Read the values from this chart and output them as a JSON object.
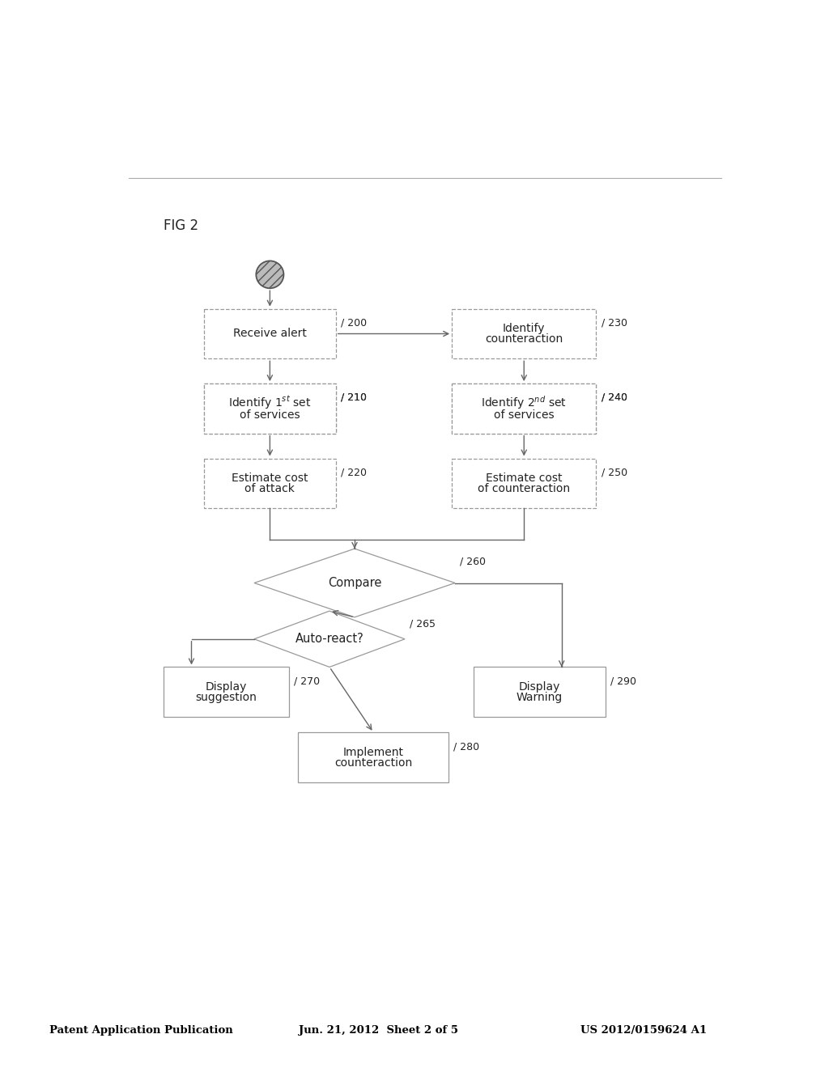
{
  "title_left": "Patent Application Publication",
  "title_center": "Jun. 21, 2012  Sheet 2 of 5",
  "title_right": "US 2012/0159624 A1",
  "fig_label": "FIG 2",
  "background_color": "#ffffff",
  "box_edge_color": "#999999",
  "box_face_color": "#ffffff",
  "arrow_color": "#666666",
  "text_color": "#222222",
  "line_color": "#777777",
  "header_color": "#000000"
}
